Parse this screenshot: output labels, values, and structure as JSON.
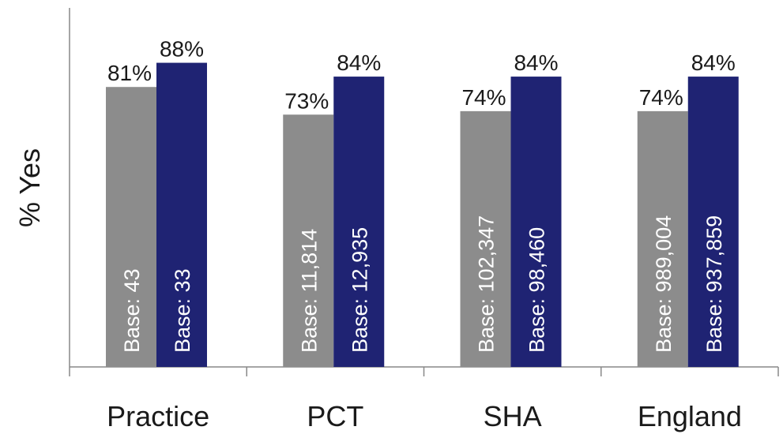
{
  "chart_data": {
    "type": "bar",
    "title": "",
    "xlabel": "",
    "ylabel": "% Yes",
    "ylim": [
      0,
      100
    ],
    "grid": false,
    "legend": "none",
    "categories": [
      "Practice",
      "PCT",
      "SHA",
      "England"
    ],
    "series": [
      {
        "color": "#8c8c8c",
        "values": [
          81,
          73,
          74,
          74
        ],
        "value_labels": [
          "81%",
          "73%",
          "74%",
          "74%"
        ],
        "base_labels": [
          "Base: 43",
          "Base: 11,814",
          "Base: 102,347",
          "Base: 989,004"
        ]
      },
      {
        "color": "#1f2373",
        "values": [
          88,
          84,
          84,
          84
        ],
        "value_labels": [
          "88%",
          "84%",
          "84%",
          "84%"
        ],
        "base_labels": [
          "Base: 33",
          "Base: 12,935",
          "Base: 98,460",
          "Base: 937,859"
        ]
      }
    ]
  }
}
